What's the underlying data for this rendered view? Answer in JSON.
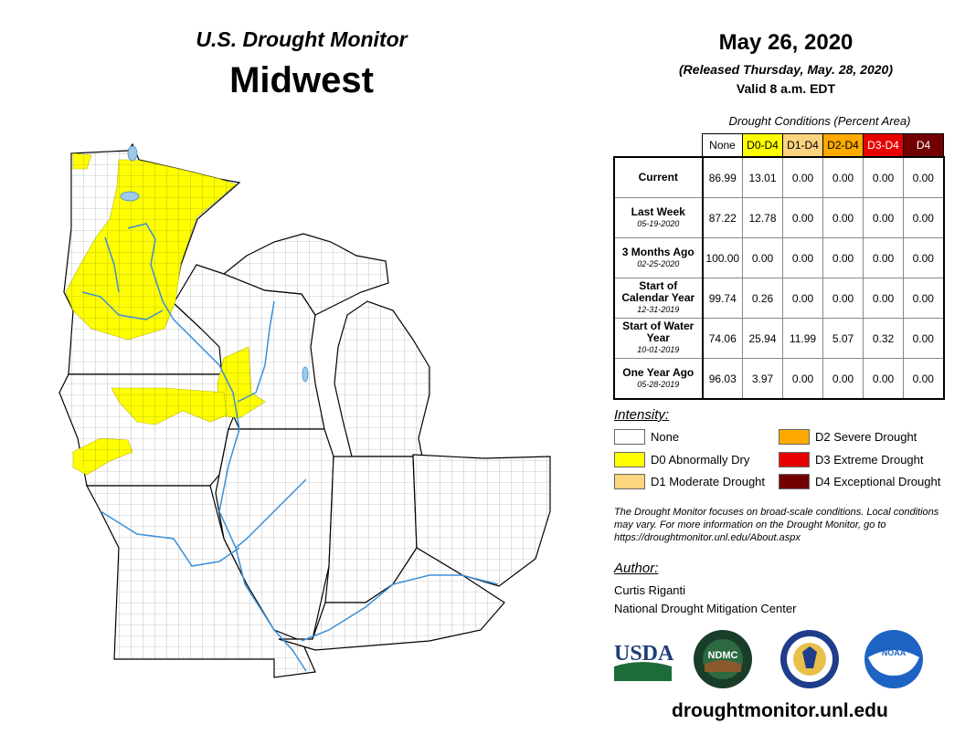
{
  "header": {
    "product": "U.S. Drought Monitor",
    "region": "Midwest",
    "date": "May 26, 2020",
    "released": "(Released Thursday, May. 28, 2020)",
    "valid": "Valid 8 a.m. EDT"
  },
  "table": {
    "caption": "Drought Conditions (Percent Area)",
    "columns": [
      {
        "label": "None",
        "color": "#ffffff",
        "text": "#000000"
      },
      {
        "label": "D0-D4",
        "color": "#ffff00",
        "text": "#000000"
      },
      {
        "label": "D1-D4",
        "color": "#fcd37f",
        "text": "#000000"
      },
      {
        "label": "D2-D4",
        "color": "#ffaa00",
        "text": "#000000"
      },
      {
        "label": "D3-D4",
        "color": "#e60000",
        "text": "#ffffff"
      },
      {
        "label": "D4",
        "color": "#730000",
        "text": "#ffffff"
      }
    ],
    "rows": [
      {
        "label": "Current",
        "date": "",
        "values": [
          "86.99",
          "13.01",
          "0.00",
          "0.00",
          "0.00",
          "0.00"
        ]
      },
      {
        "label": "Last Week",
        "date": "05-19-2020",
        "values": [
          "87.22",
          "12.78",
          "0.00",
          "0.00",
          "0.00",
          "0.00"
        ]
      },
      {
        "label": "3 Months Ago",
        "date": "02-25-2020",
        "values": [
          "100.00",
          "0.00",
          "0.00",
          "0.00",
          "0.00",
          "0.00"
        ]
      },
      {
        "label": "Start of Calendar Year",
        "date": "12-31-2019",
        "values": [
          "99.74",
          "0.26",
          "0.00",
          "0.00",
          "0.00",
          "0.00"
        ]
      },
      {
        "label": "Start of Water Year",
        "date": "10-01-2019",
        "values": [
          "74.06",
          "25.94",
          "11.99",
          "5.07",
          "0.32",
          "0.00"
        ]
      },
      {
        "label": "One Year Ago",
        "date": "05-28-2019",
        "values": [
          "96.03",
          "3.97",
          "0.00",
          "0.00",
          "0.00",
          "0.00"
        ]
      }
    ]
  },
  "legend": {
    "title": "Intensity:",
    "items": [
      {
        "label": "None",
        "color": "#ffffff"
      },
      {
        "label": "D0 Abnormally Dry",
        "color": "#ffff00"
      },
      {
        "label": "D1 Moderate Drought",
        "color": "#fcd37f"
      },
      {
        "label": "D2 Severe Drought",
        "color": "#ffaa00"
      },
      {
        "label": "D3 Extreme Drought",
        "color": "#e60000"
      },
      {
        "label": "D4 Exceptional Drought",
        "color": "#730000"
      }
    ]
  },
  "note": "The Drought Monitor focuses on broad-scale conditions. Local conditions may vary. For more information on the Drought Monitor, go to https://droughtmonitor.unl.edu/About.aspx",
  "author": {
    "heading": "Author:",
    "name": "Curtis Riganti",
    "org": "National Drought Mitigation Center"
  },
  "logos": [
    "USDA",
    "NDMC",
    "Department of Commerce",
    "NOAA"
  ],
  "url": "droughtmonitor.unl.edu",
  "map": {
    "water_color": "#9fc9e8",
    "river_color": "#3a8fd8",
    "d0_color": "#ffff00"
  }
}
